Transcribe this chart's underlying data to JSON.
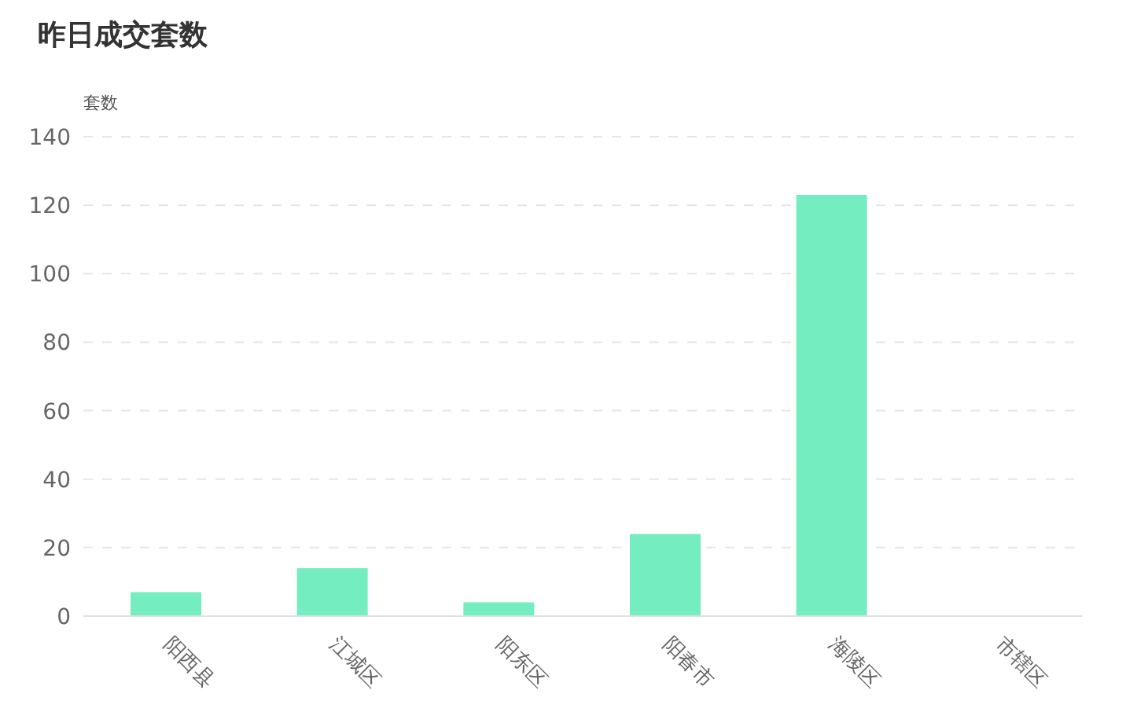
{
  "chart_data": {
    "type": "bar",
    "title": "昨日成交套数",
    "ylabel": "套数",
    "categories": [
      "阳西县",
      "江城区",
      "阳东区",
      "阳春市",
      "海陵区",
      "市辖区"
    ],
    "values": [
      7,
      14,
      4,
      24,
      123,
      0
    ],
    "color": "#74eec0",
    "ylim": [
      0,
      140
    ],
    "yticks": [
      0,
      20,
      40,
      60,
      80,
      100,
      120,
      140
    ],
    "grid": "y"
  }
}
